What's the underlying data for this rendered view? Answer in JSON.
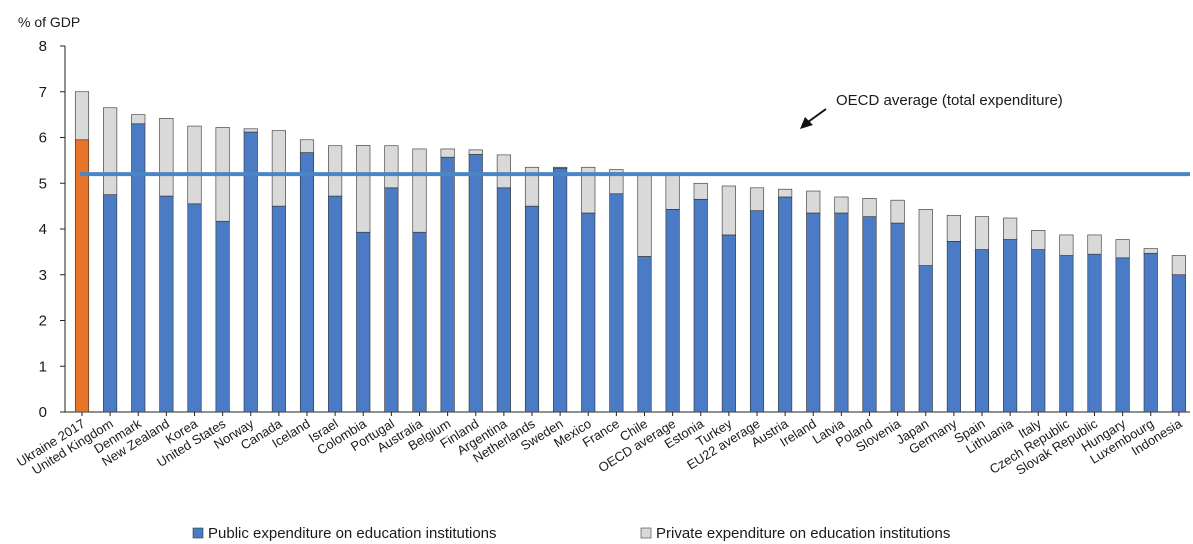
{
  "chart_data": {
    "type": "bar",
    "stacked": true,
    "ylabel": "% of GDP",
    "ylim": [
      0,
      8
    ],
    "yticks": [
      0,
      1,
      2,
      3,
      4,
      5,
      6,
      7,
      8
    ],
    "grid": false,
    "legend_position": "bottom",
    "categories": [
      "Ukraine 2017",
      "United Kingdom",
      "Denmark",
      "New Zealand",
      "Korea",
      "United States",
      "Norway",
      "Canada",
      "Iceland",
      "Israel",
      "Colombia",
      "Portugal",
      "Australia",
      "Belgium",
      "Finland",
      "Argentina",
      "Netherlands",
      "Sweden",
      "Mexico",
      "France",
      "Chile",
      "OECD average",
      "Estonia",
      "Turkey",
      "EU22 average",
      "Austria",
      "Ireland",
      "Latvia",
      "Poland",
      "Slovenia",
      "Japan",
      "Germany",
      "Spain",
      "Lithuania",
      "Italy",
      "Czech Republic",
      "Slovak Republic",
      "Hungary",
      "Luxembourg",
      "Indonesia"
    ],
    "series": [
      {
        "name": "Public expenditure on education institutions",
        "color": "#4a7bc4",
        "values": [
          5.95,
          4.75,
          6.3,
          4.72,
          4.55,
          4.17,
          6.12,
          4.5,
          5.67,
          4.72,
          3.93,
          4.9,
          3.93,
          5.57,
          5.63,
          4.9,
          4.5,
          5.33,
          4.35,
          4.77,
          3.4,
          4.43,
          4.65,
          3.87,
          4.4,
          4.7,
          4.35,
          4.35,
          4.27,
          4.13,
          3.2,
          3.73,
          3.55,
          3.77,
          3.55,
          3.42,
          3.45,
          3.37,
          3.47,
          3.0
        ]
      },
      {
        "name": "Private expenditure on education institutions",
        "color": "#d9d9d9",
        "values": [
          1.05,
          1.9,
          0.2,
          1.7,
          1.7,
          2.05,
          0.07,
          1.65,
          0.28,
          1.1,
          1.9,
          0.92,
          1.82,
          0.18,
          0.1,
          0.72,
          0.85,
          0.02,
          1.0,
          0.53,
          1.8,
          0.77,
          0.35,
          1.07,
          0.5,
          0.17,
          0.48,
          0.35,
          0.4,
          0.5,
          1.23,
          0.57,
          0.72,
          0.47,
          0.42,
          0.45,
          0.42,
          0.4,
          0.1,
          0.42
        ]
      }
    ],
    "highlight": {
      "category": "Ukraine 2017",
      "color": "#e8742a"
    },
    "reference_line": {
      "value": 5.2,
      "color": "#4a86c7"
    },
    "annotation": "OECD average (total expenditure)"
  }
}
